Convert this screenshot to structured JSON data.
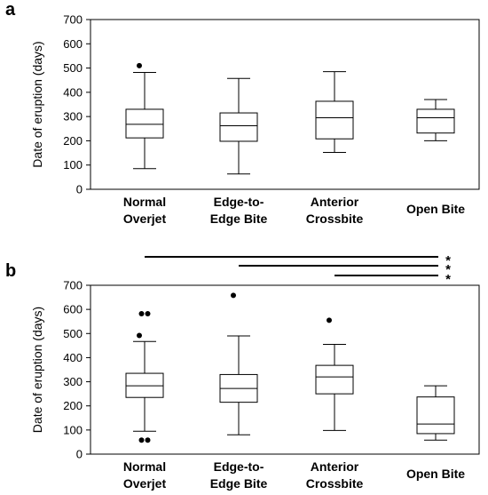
{
  "chart_data": [
    {
      "type": "boxplot",
      "panel": "a",
      "ylabel": "Date of eruption (days)",
      "ylim": [
        0,
        700
      ],
      "yticks": [
        "0",
        "100",
        "200",
        "300",
        "400",
        "500",
        "600",
        "700"
      ],
      "categories": [
        [
          "Normal",
          "Overjet"
        ],
        [
          "Edge-to-",
          "Edge Bite"
        ],
        [
          "Anterior",
          "Crossbite"
        ],
        [
          "Open Bite"
        ]
      ],
      "boxes": [
        {
          "whisker_low": 85,
          "q1": 212,
          "median": 268,
          "q3": 330,
          "whisker_high": 482,
          "outliers": [
            510
          ]
        },
        {
          "whisker_low": 63,
          "q1": 198,
          "median": 262,
          "q3": 315,
          "whisker_high": 457,
          "outliers": []
        },
        {
          "whisker_low": 152,
          "q1": 208,
          "median": 295,
          "q3": 363,
          "whisker_high": 485,
          "outliers": []
        },
        {
          "whisker_low": 200,
          "q1": 232,
          "median": 295,
          "q3": 330,
          "whisker_high": 370,
          "outliers": []
        }
      ],
      "significance": []
    },
    {
      "type": "boxplot",
      "panel": "b",
      "ylabel": "Date of eruption (days)",
      "ylim": [
        0,
        700
      ],
      "yticks": [
        "0",
        "100",
        "200",
        "300",
        "400",
        "500",
        "600",
        "700"
      ],
      "categories": [
        [
          "Normal",
          "Overjet"
        ],
        [
          "Edge-to-",
          "Edge Bite"
        ],
        [
          "Anterior",
          "Crossbite"
        ],
        [
          "Open Bite"
        ]
      ],
      "boxes": [
        {
          "whisker_low": 95,
          "q1": 235,
          "median": 283,
          "q3": 335,
          "whisker_high": 467,
          "outliers": [
            58,
            58,
            492,
            582,
            582
          ]
        },
        {
          "whisker_low": 80,
          "q1": 215,
          "median": 272,
          "q3": 330,
          "whisker_high": 490,
          "outliers": [
            658
          ]
        },
        {
          "whisker_low": 98,
          "q1": 250,
          "median": 320,
          "q3": 368,
          "whisker_high": 455,
          "outliers": [
            555
          ]
        },
        {
          "whisker_low": 58,
          "q1": 85,
          "median": 125,
          "q3": 237,
          "whisker_high": 283,
          "outliers": []
        }
      ],
      "significance": [
        {
          "from_category": 0,
          "to_category": 3,
          "marker": "*"
        },
        {
          "from_category": 1,
          "to_category": 3,
          "marker": "*"
        },
        {
          "from_category": 2,
          "to_category": 3,
          "marker": "*"
        }
      ]
    }
  ]
}
